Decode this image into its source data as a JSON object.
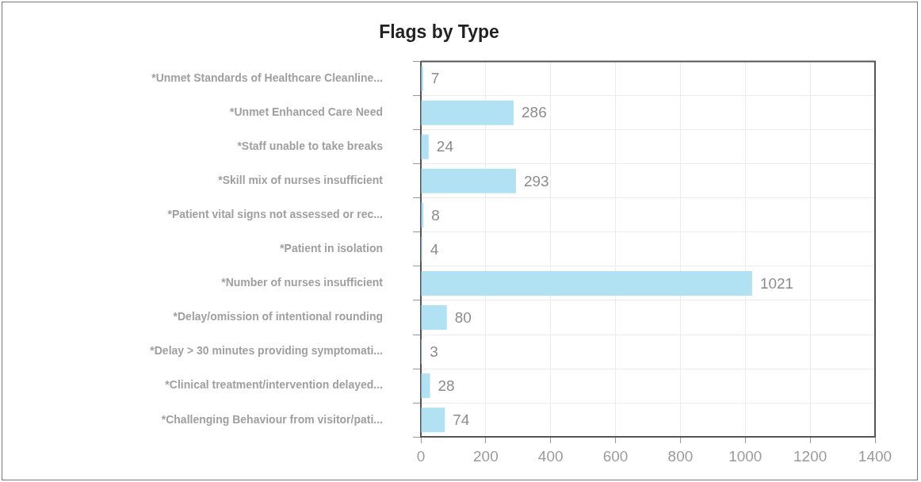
{
  "chart_data": {
    "type": "bar",
    "title": "Flags by Type",
    "orientation": "horizontal",
    "categories": [
      "*Unmet Standards of Healthcare Cleanline...",
      "*Unmet Enhanced Care Need",
      "*Staff unable to take breaks",
      "*Skill mix of nurses insufficient",
      "*Patient vital signs not assessed or rec...",
      "*Patient in isolation",
      "*Number of nurses insufficient",
      "*Delay/omission of intentional rounding",
      "*Delay > 30 minutes providing symptomati...",
      "*Clinical treatment/intervention delayed...",
      "*Challenging Behaviour from visitor/pati..."
    ],
    "values": [
      7,
      286,
      24,
      293,
      8,
      4,
      1021,
      80,
      3,
      28,
      74
    ],
    "color": "#b0e2f4",
    "xlim": [
      0,
      1400
    ],
    "xticks": [
      0,
      200,
      400,
      600,
      800,
      1000,
      1200,
      1400
    ],
    "grid": true,
    "data_labels": true
  }
}
